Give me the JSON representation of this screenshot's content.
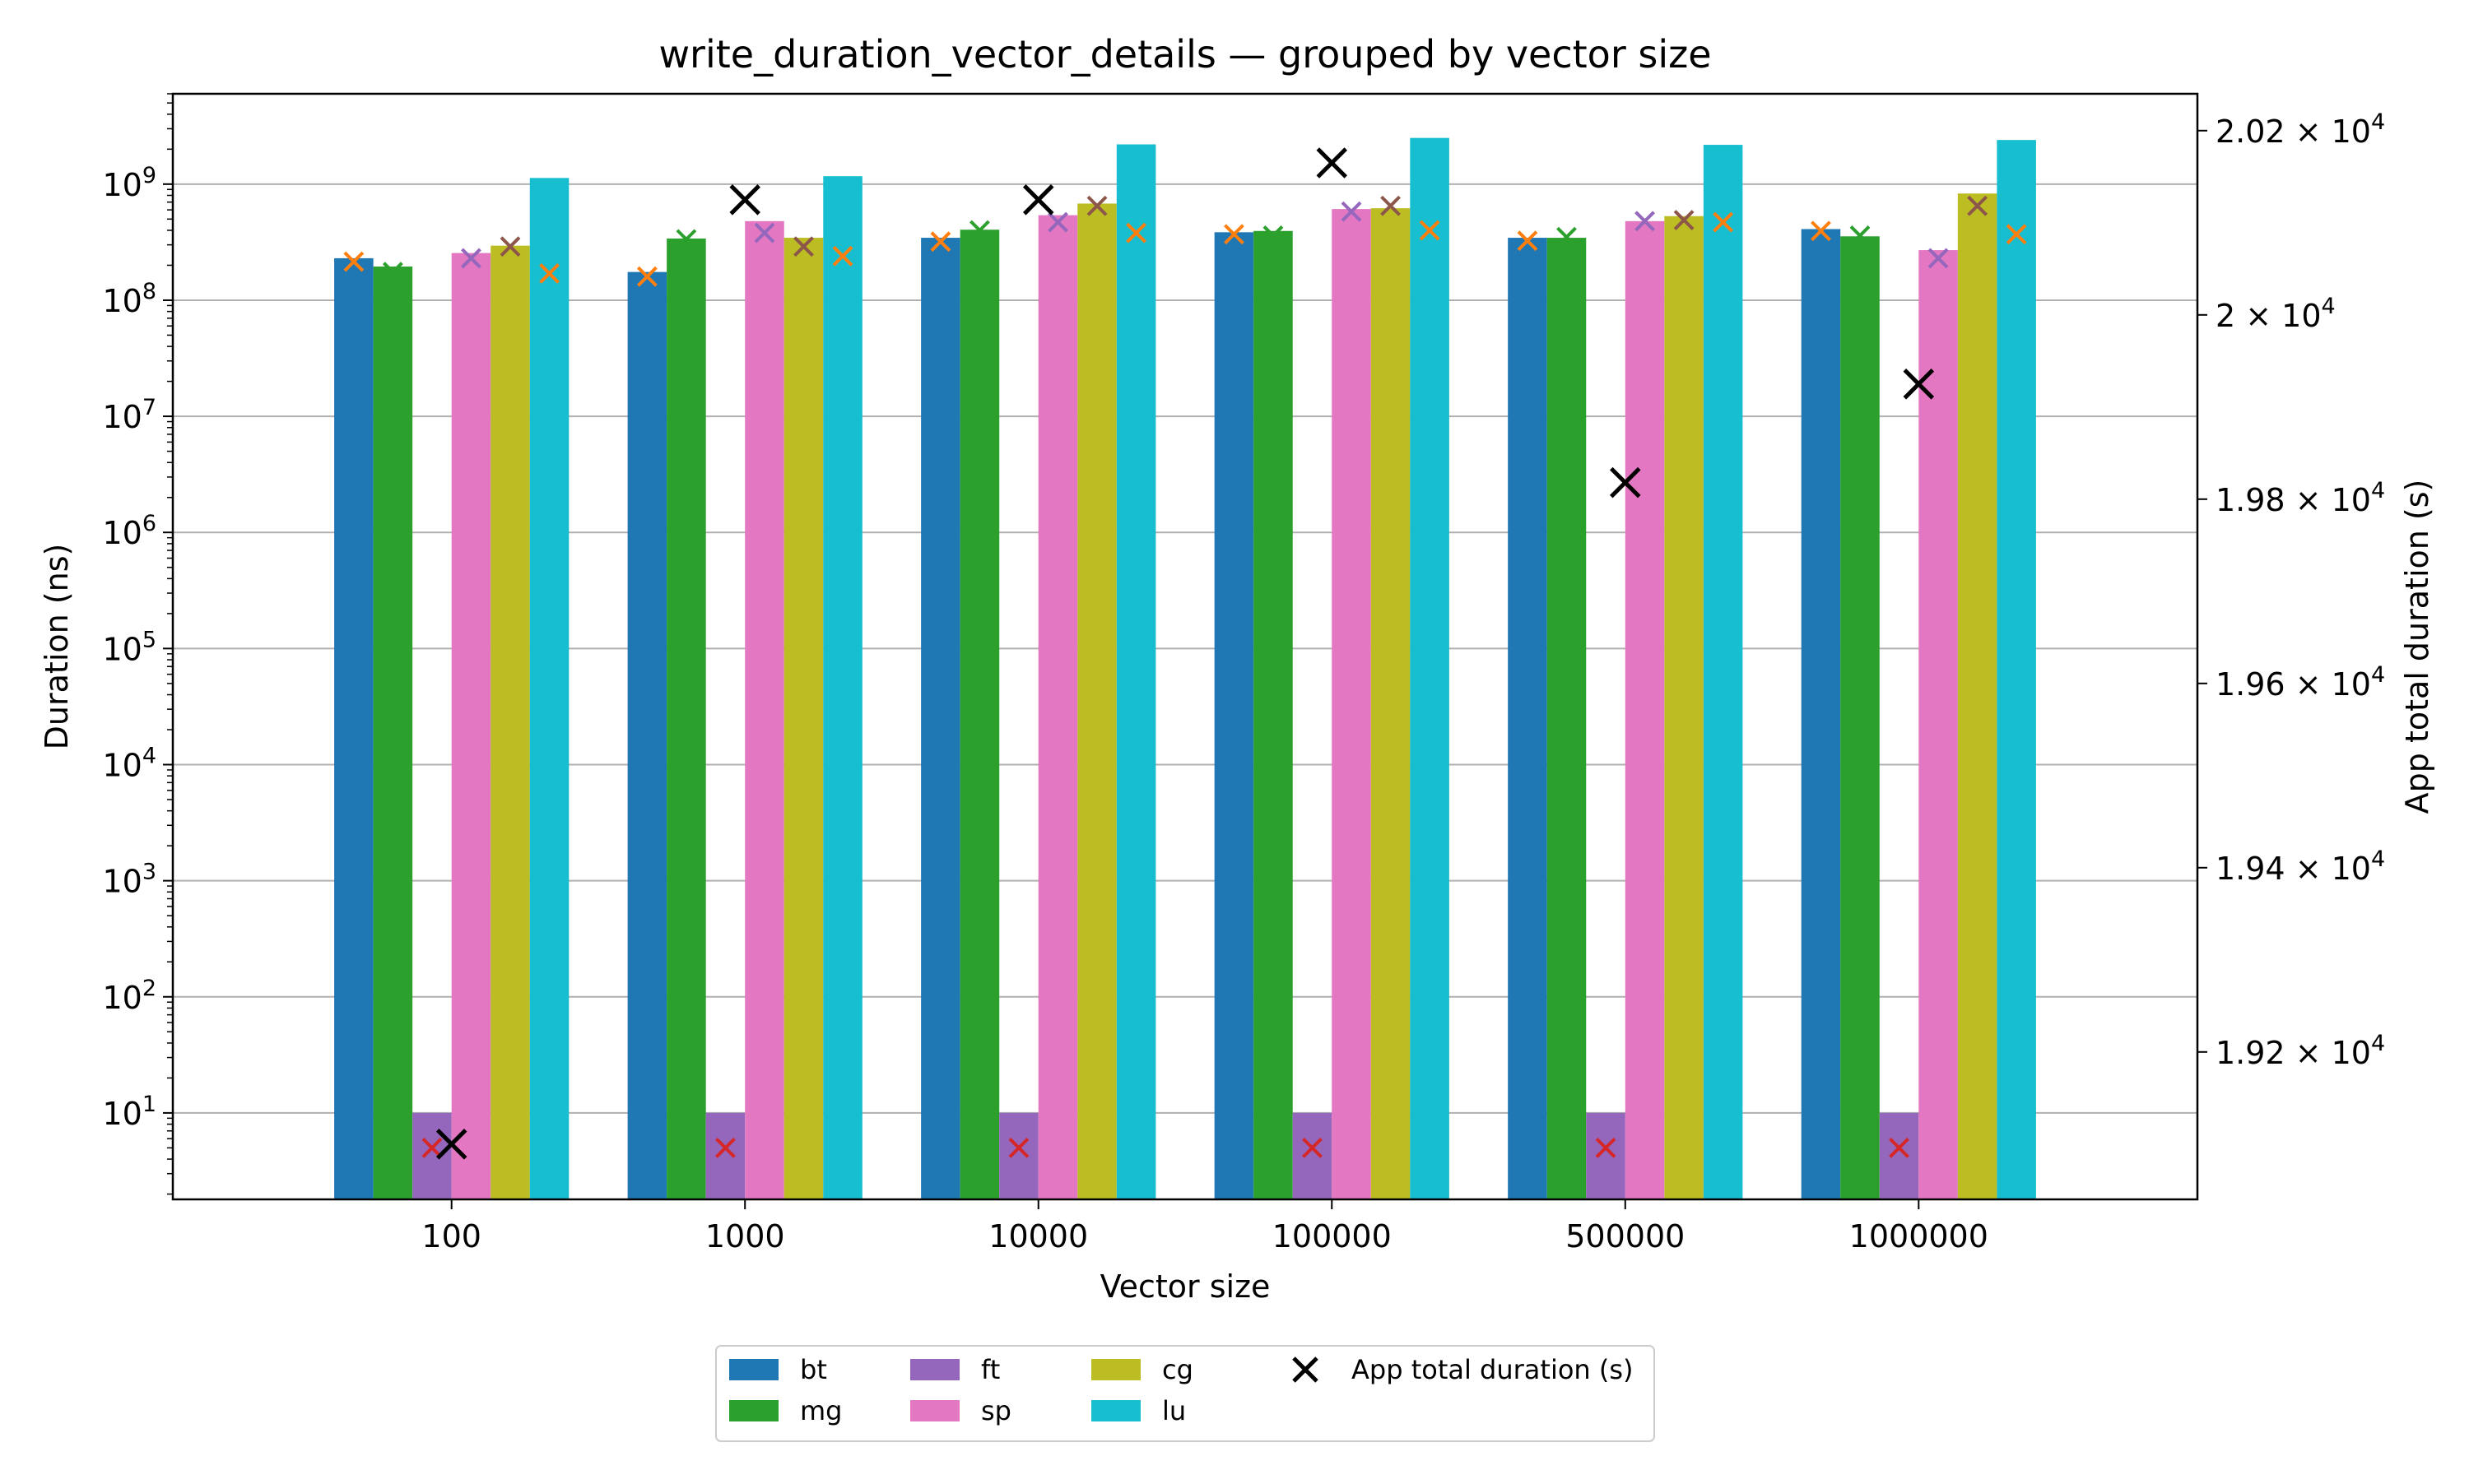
{
  "chart_data": {
    "type": "bar",
    "title": "write_duration_vector_details — grouped by vector size",
    "xlabel": "Vector size",
    "ylabel": "Duration (ns)",
    "y2label": "App total duration (s)",
    "yscale": "log",
    "ylim": [
      1.8,
      6000000000
    ],
    "y2lim": [
      19040,
      20240
    ],
    "grid": "y-major",
    "legend_position": "bottom-center",
    "categories": [
      "100",
      "1000",
      "10000",
      "100000",
      "500000",
      "1000000"
    ],
    "yticks": [
      {
        "mant": "10",
        "exp": "1",
        "value": 10
      },
      {
        "mant": "10",
        "exp": "2",
        "value": 100
      },
      {
        "mant": "10",
        "exp": "3",
        "value": 1000
      },
      {
        "mant": "10",
        "exp": "4",
        "value": 10000
      },
      {
        "mant": "10",
        "exp": "5",
        "value": 100000
      },
      {
        "mant": "10",
        "exp": "6",
        "value": 1000000
      },
      {
        "mant": "10",
        "exp": "7",
        "value": 10000000
      },
      {
        "mant": "10",
        "exp": "8",
        "value": 100000000
      },
      {
        "mant": "10",
        "exp": "9",
        "value": 1000000000
      }
    ],
    "y2ticks": [
      {
        "mant": "1.92 × 10",
        "exp": "4",
        "value": 19200
      },
      {
        "mant": "1.94 × 10",
        "exp": "4",
        "value": 19400
      },
      {
        "mant": "1.96 × 10",
        "exp": "4",
        "value": 19600
      },
      {
        "mant": "1.98 × 10",
        "exp": "4",
        "value": 19800
      },
      {
        "mant": "2 × 10",
        "exp": "4",
        "value": 20000
      },
      {
        "mant": "2.02 × 10",
        "exp": "4",
        "value": 20200
      }
    ],
    "series": [
      {
        "name": "bt",
        "color": "#1f77b4",
        "values": [
          230000000,
          175000000,
          345000000,
          385000000,
          345000000,
          410000000
        ],
        "x_marks": [
          215000000,
          160000000,
          320000000,
          370000000,
          325000000,
          395000000
        ]
      },
      {
        "name": "mg",
        "color": "#2ca02c",
        "values": [
          195000000,
          340000000,
          405000000,
          395000000,
          345000000,
          355000000
        ],
        "x_marks": [
          175000000,
          335000000,
          400000000,
          360000000,
          350000000,
          360000000
        ]
      },
      {
        "name": "ft",
        "color": "#9467bd",
        "values": [
          10,
          10,
          10,
          10,
          10,
          10
        ],
        "x_marks": [
          5,
          5,
          5,
          5,
          5,
          5
        ]
      },
      {
        "name": "sp",
        "color": "#e377c2",
        "values": [
          255000000,
          480000000,
          540000000,
          610000000,
          480000000,
          270000000
        ],
        "x_marks": [
          230000000,
          380000000,
          470000000,
          580000000,
          480000000,
          230000000
        ]
      },
      {
        "name": "cg",
        "color": "#bcbd22",
        "values": [
          295000000,
          345000000,
          680000000,
          620000000,
          530000000,
          830000000
        ],
        "x_marks": [
          290000000,
          290000000,
          650000000,
          650000000,
          490000000,
          650000000
        ]
      },
      {
        "name": "lu",
        "color": "#17becf",
        "values": [
          1130000000,
          1170000000,
          2200000000,
          2500000000,
          2180000000,
          2400000000
        ],
        "x_marks": [
          170000000,
          240000000,
          380000000,
          400000000,
          470000000,
          370000000
        ]
      }
    ],
    "marker_series": {
      "name": "App total duration (s)",
      "color": "#000000",
      "values": [
        19100,
        20125,
        20125,
        20165,
        19818,
        19925
      ]
    },
    "marker_colors": [
      "#ff7f0e",
      "#2ca02c",
      "#d62728",
      "#9467bd",
      "#8c564b"
    ]
  }
}
